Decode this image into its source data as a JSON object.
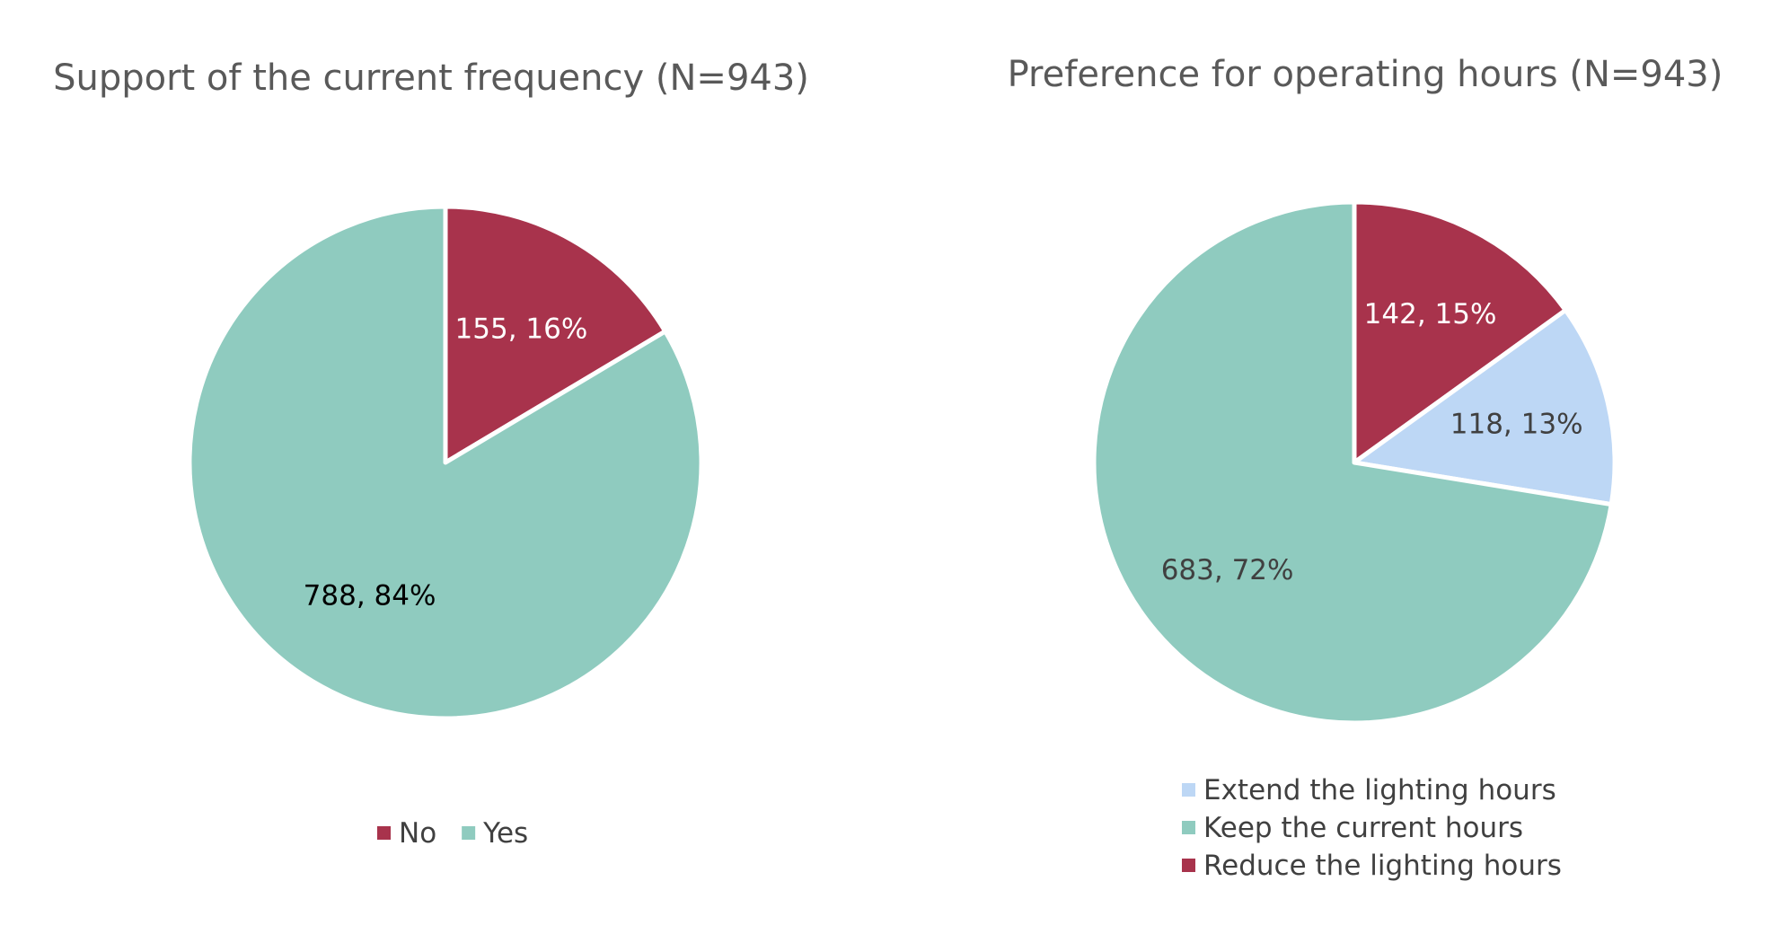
{
  "chart_data": [
    {
      "type": "pie",
      "title": "Support of the current frequency (N=943)",
      "legend_position": "bottom",
      "slices": [
        {
          "label": "No",
          "value": 155,
          "percent": "16%",
          "color": "#A8334C",
          "data_label": "155, 16%",
          "label_color": "#ffffff"
        },
        {
          "label": "Yes",
          "value": 788,
          "percent": "84%",
          "color": "#8FCBBF",
          "data_label": "788, 84%",
          "label_color": "#000000"
        }
      ],
      "legend": [
        {
          "label": "No",
          "color": "#A8334C"
        },
        {
          "label": "Yes",
          "color": "#8FCBBF"
        }
      ]
    },
    {
      "type": "pie",
      "title": "Preference for operating hours (N=943)",
      "legend_position": "bottom",
      "slices": [
        {
          "label": "Reduce the lighting hours",
          "value": 142,
          "percent": "15%",
          "color": "#A8334C",
          "data_label": "142, 15%",
          "label_color": "#ffffff"
        },
        {
          "label": "Extend the lighting hours",
          "value": 118,
          "percent": "13%",
          "color": "#BDD7F5",
          "data_label": "118, 13%",
          "label_color": "#404040"
        },
        {
          "label": "Keep the current hours",
          "value": 683,
          "percent": "72%",
          "color": "#8FCBBF",
          "data_label": "683, 72%",
          "label_color": "#404040"
        }
      ],
      "legend": [
        {
          "label": "Extend the lighting hours",
          "color": "#BDD7F5"
        },
        {
          "label": "Keep the current hours",
          "color": "#8FCBBF"
        },
        {
          "label": "Reduce the lighting hours",
          "color": "#A8334C"
        }
      ]
    }
  ]
}
